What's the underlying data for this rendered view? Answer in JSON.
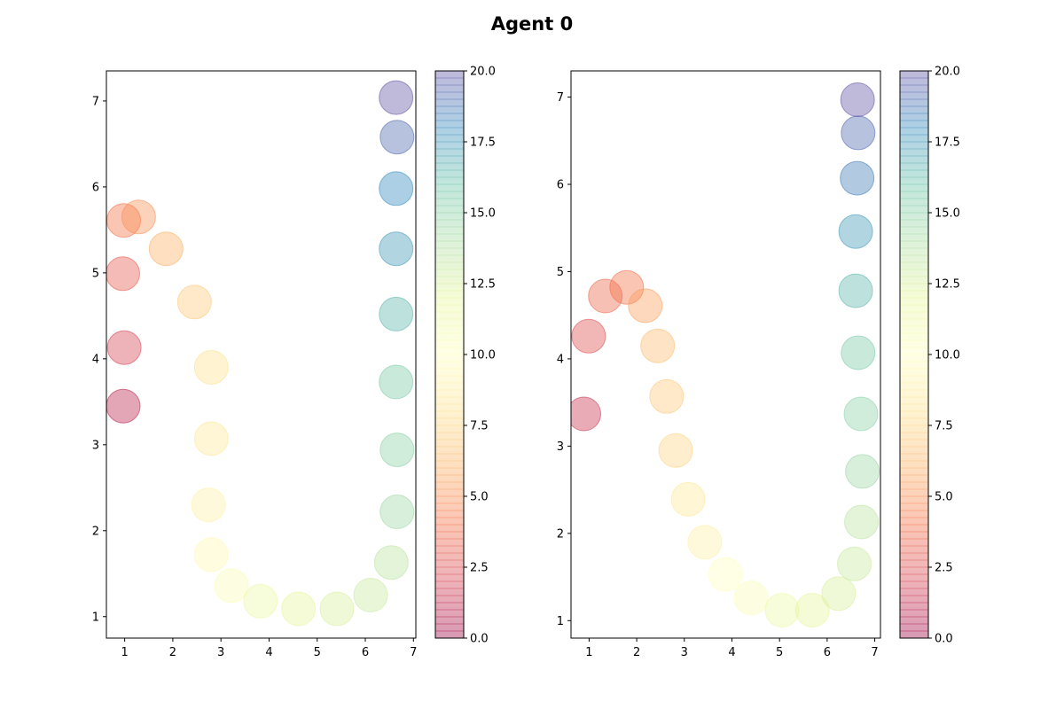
{
  "figure": {
    "title": "Agent 0"
  },
  "colormap": {
    "name": "Spectral",
    "stops": [
      "#9e0142",
      "#d53e4f",
      "#f46d43",
      "#fdae61",
      "#fee08b",
      "#ffffbf",
      "#e6f598",
      "#abdda4",
      "#66c2a5",
      "#3288bd",
      "#5e4fa2"
    ],
    "marker_alpha": 0.4
  },
  "chart_data": [
    {
      "type": "scatter",
      "title": "",
      "xlabel": "",
      "ylabel": "",
      "xlim": [
        0.62,
        7.05
      ],
      "ylim": [
        0.75,
        7.35
      ],
      "xticks": [
        1,
        2,
        3,
        4,
        5,
        6,
        7
      ],
      "yticks": [
        1,
        2,
        3,
        4,
        5,
        6,
        7
      ],
      "grid": false,
      "colorbar": {
        "range": [
          0,
          20
        ],
        "ticks": [
          "0.0",
          "2.5",
          "5.0",
          "7.5",
          "10.0",
          "12.5",
          "15.0",
          "17.5",
          "20.0"
        ]
      },
      "points": [
        {
          "x": 0.97,
          "y": 3.45,
          "c": 1
        },
        {
          "x": 0.99,
          "y": 4.13,
          "c": 2
        },
        {
          "x": 0.96,
          "y": 4.99,
          "c": 3
        },
        {
          "x": 0.98,
          "y": 5.61,
          "c": 4
        },
        {
          "x": 1.29,
          "y": 5.65,
          "c": 5
        },
        {
          "x": 1.86,
          "y": 5.28,
          "c": 6
        },
        {
          "x": 2.45,
          "y": 4.66,
          "c": 7
        },
        {
          "x": 2.8,
          "y": 3.9,
          "c": 8
        },
        {
          "x": 2.8,
          "y": 3.07,
          "c": 8.5
        },
        {
          "x": 2.74,
          "y": 2.3,
          "c": 9
        },
        {
          "x": 2.8,
          "y": 1.72,
          "c": 9.5
        },
        {
          "x": 3.22,
          "y": 1.36,
          "c": 10.5
        },
        {
          "x": 3.82,
          "y": 1.18,
          "c": 11.5
        },
        {
          "x": 4.61,
          "y": 1.09,
          "c": 12
        },
        {
          "x": 5.41,
          "y": 1.09,
          "c": 12.5
        },
        {
          "x": 6.11,
          "y": 1.25,
          "c": 13
        },
        {
          "x": 6.54,
          "y": 1.63,
          "c": 13.5
        },
        {
          "x": 6.66,
          "y": 2.22,
          "c": 14.5
        },
        {
          "x": 6.66,
          "y": 2.94,
          "c": 15
        },
        {
          "x": 6.64,
          "y": 3.73,
          "c": 15.5
        },
        {
          "x": 6.64,
          "y": 4.52,
          "c": 16.5
        },
        {
          "x": 6.64,
          "y": 5.28,
          "c": 17.5
        },
        {
          "x": 6.64,
          "y": 5.98,
          "c": 18
        },
        {
          "x": 6.66,
          "y": 6.58,
          "c": 19.2
        },
        {
          "x": 6.64,
          "y": 7.04,
          "c": 20
        }
      ]
    },
    {
      "type": "scatter",
      "title": "",
      "xlabel": "",
      "ylabel": "",
      "xlim": [
        0.62,
        7.12
      ],
      "ylim": [
        0.8,
        7.3
      ],
      "xticks": [
        1,
        2,
        3,
        4,
        5,
        6,
        7
      ],
      "yticks": [
        1,
        2,
        3,
        4,
        5,
        6,
        7
      ],
      "grid": false,
      "colorbar": {
        "range": [
          0,
          20
        ],
        "ticks": [
          "0.0",
          "2.5",
          "5.0",
          "7.5",
          "10.0",
          "12.5",
          "15.0",
          "17.5",
          "20.0"
        ]
      },
      "points": [
        {
          "x": 0.89,
          "y": 3.37,
          "c": 1.5
        },
        {
          "x": 0.99,
          "y": 4.26,
          "c": 2.5
        },
        {
          "x": 1.34,
          "y": 4.72,
          "c": 3.5
        },
        {
          "x": 1.79,
          "y": 4.82,
          "c": 4
        },
        {
          "x": 2.18,
          "y": 4.61,
          "c": 5.5
        },
        {
          "x": 2.44,
          "y": 4.15,
          "c": 6.5
        },
        {
          "x": 2.63,
          "y": 3.57,
          "c": 7
        },
        {
          "x": 2.82,
          "y": 2.95,
          "c": 7.5
        },
        {
          "x": 3.08,
          "y": 2.39,
          "c": 8.5
        },
        {
          "x": 3.43,
          "y": 1.9,
          "c": 9
        },
        {
          "x": 3.86,
          "y": 1.53,
          "c": 10
        },
        {
          "x": 4.4,
          "y": 1.26,
          "c": 10.5
        },
        {
          "x": 5.05,
          "y": 1.12,
          "c": 11.5
        },
        {
          "x": 5.69,
          "y": 1.12,
          "c": 12
        },
        {
          "x": 6.24,
          "y": 1.31,
          "c": 12.5
        },
        {
          "x": 6.57,
          "y": 1.65,
          "c": 13
        },
        {
          "x": 6.72,
          "y": 2.13,
          "c": 13.5
        },
        {
          "x": 6.74,
          "y": 2.71,
          "c": 14.5
        },
        {
          "x": 6.71,
          "y": 3.37,
          "c": 15
        },
        {
          "x": 6.65,
          "y": 4.07,
          "c": 15.5
        },
        {
          "x": 6.6,
          "y": 4.78,
          "c": 16.5
        },
        {
          "x": 6.6,
          "y": 5.46,
          "c": 17.5
        },
        {
          "x": 6.63,
          "y": 6.07,
          "c": 18.5
        },
        {
          "x": 6.65,
          "y": 6.59,
          "c": 19.2
        },
        {
          "x": 6.64,
          "y": 6.97,
          "c": 20
        }
      ]
    }
  ]
}
